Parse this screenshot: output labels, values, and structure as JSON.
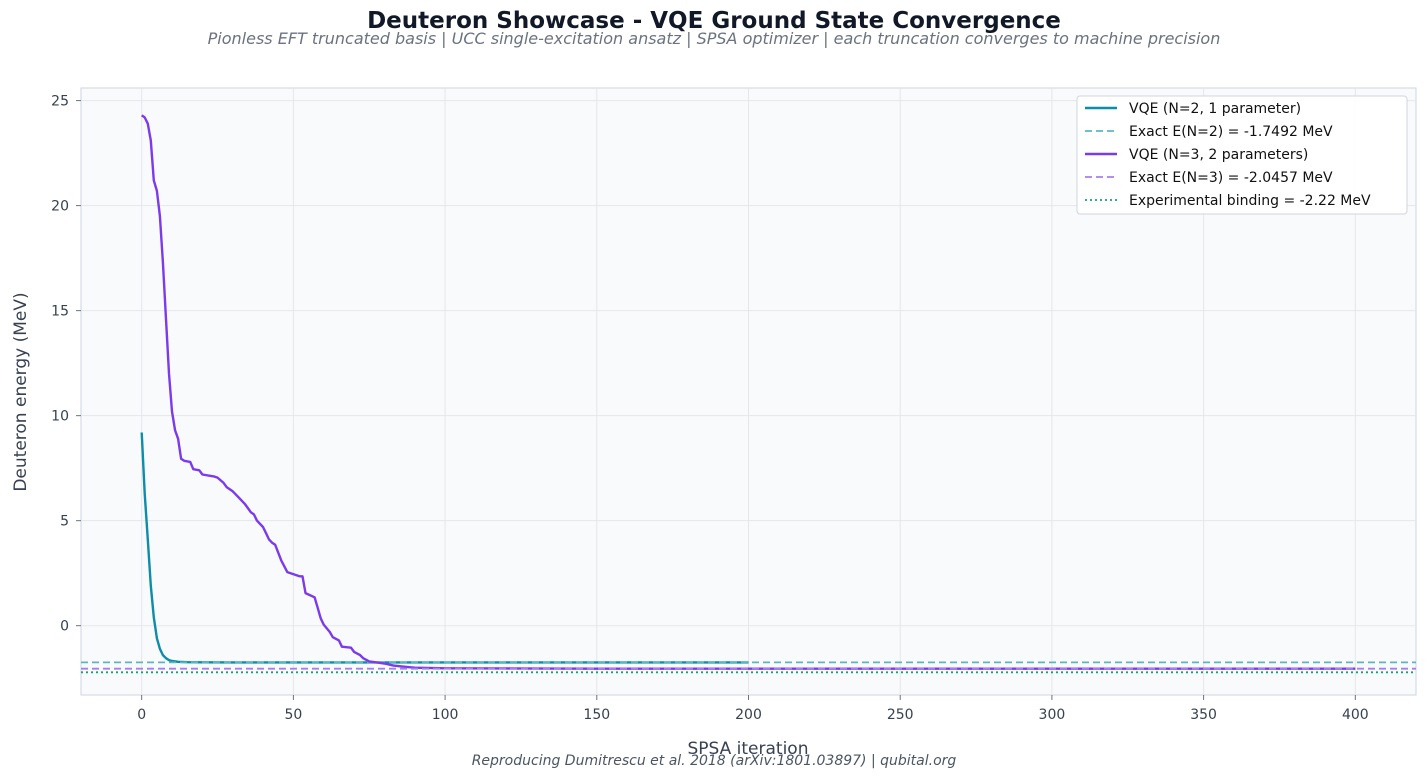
{
  "chart_data": {
    "type": "line",
    "title": "Deuteron Showcase - VQE Ground State Convergence",
    "subtitle": "Pionless EFT truncated basis  |  UCC single-excitation ansatz  |  SPSA optimizer  |  each truncation converges to machine precision",
    "footer": "Reproducing Dumitrescu et al. 2018 (arXiv:1801.03897)  |  qubital.org",
    "xlabel": "SPSA iteration",
    "ylabel": "Deuteron energy (MeV)",
    "xlim": [
      -20,
      420
    ],
    "ylim": [
      -3.3,
      25.6
    ],
    "xticks": [
      0,
      50,
      100,
      150,
      200,
      250,
      300,
      350,
      400
    ],
    "yticks": [
      0,
      5,
      10,
      15,
      20,
      25
    ],
    "ytick_labels": [
      "0",
      "5",
      "10",
      "15",
      "20",
      "25"
    ],
    "grid": true,
    "legend_position": "top-right",
    "series": [
      {
        "name": "VQE (N=2, 1 parameter)",
        "color": "#0e8ca8",
        "style": "solid",
        "x": [
          0,
          1,
          2,
          3,
          4,
          5,
          6,
          7,
          8,
          9,
          10,
          12,
          15,
          20,
          30,
          50,
          100,
          150,
          200
        ],
        "y": [
          9.2,
          6.3,
          4.1,
          1.9,
          0.4,
          -0.6,
          -1.1,
          -1.4,
          -1.55,
          -1.64,
          -1.68,
          -1.72,
          -1.74,
          -1.745,
          -1.749,
          -1.7492,
          -1.7492,
          -1.7492,
          -1.7492
        ]
      },
      {
        "name": "Exact E(N=2) = -1.7492 MeV",
        "color": "#5eb5c2",
        "style": "dashed",
        "x": [
          -20,
          420
        ],
        "y": [
          -1.7492,
          -1.7492
        ]
      },
      {
        "name": "VQE (N=3, 2 parameters)",
        "color": "#7c3aed",
        "style": "solid",
        "x": [
          0,
          1,
          2,
          3,
          4,
          5,
          6,
          7,
          8,
          9,
          10,
          11,
          12,
          13,
          14,
          16,
          17,
          19,
          20,
          24,
          25,
          27,
          28,
          30,
          32,
          34,
          35,
          36,
          37,
          38,
          40,
          41,
          42,
          43,
          44,
          46,
          48,
          52,
          53,
          54,
          57,
          58,
          59,
          60,
          62,
          63,
          65,
          66,
          69,
          70,
          72,
          73,
          75,
          80,
          83,
          86,
          90,
          100,
          150,
          200,
          250,
          300,
          350,
          400
        ],
        "y": [
          24.3,
          24.2,
          23.9,
          23.1,
          21.2,
          20.7,
          19.5,
          17.3,
          14.6,
          12.0,
          10.2,
          9.3,
          8.9,
          7.95,
          7.85,
          7.8,
          7.45,
          7.4,
          7.2,
          7.1,
          7.05,
          6.8,
          6.6,
          6.4,
          6.1,
          5.8,
          5.6,
          5.4,
          5.3,
          5.0,
          4.7,
          4.4,
          4.1,
          3.95,
          3.85,
          3.1,
          2.55,
          2.35,
          2.35,
          1.55,
          1.35,
          0.85,
          0.35,
          0.05,
          -0.3,
          -0.55,
          -0.7,
          -1.0,
          -1.05,
          -1.25,
          -1.4,
          -1.55,
          -1.7,
          -1.8,
          -1.9,
          -1.95,
          -2.0,
          -2.03,
          -2.0457,
          -2.0457,
          -2.0457,
          -2.0457,
          -2.0457,
          -2.0457
        ]
      },
      {
        "name": "Exact E(N=3) = -2.0457 MeV",
        "color": "#a77ef0",
        "style": "dashed",
        "x": [
          -20,
          420
        ],
        "y": [
          -2.0457,
          -2.0457
        ]
      },
      {
        "name": "Experimental binding = -2.22 MeV",
        "color": "#10a37a",
        "style": "dotted",
        "x": [
          -20,
          420
        ],
        "y": [
          -2.22,
          -2.22
        ]
      }
    ]
  }
}
